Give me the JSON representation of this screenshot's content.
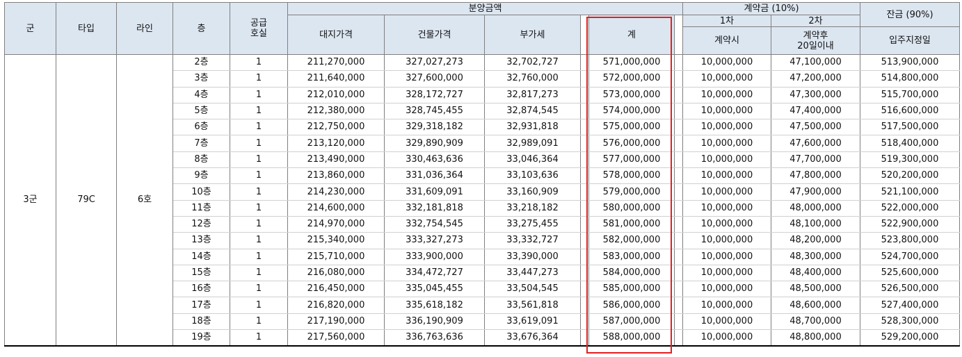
{
  "headers": {
    "group": "군",
    "type": "타입",
    "line": "라인",
    "floor": "층",
    "supply_units_l1": "공급",
    "supply_units_l2": "호실",
    "sale_price": "분양금액",
    "land_price": "대지가격",
    "building_price": "건물가격",
    "vat": "부가세",
    "total": "계",
    "deposit": "계약금 (10%)",
    "first": "1차",
    "first_sub": "계약시",
    "second": "2차",
    "second_sub_l1": "계약후",
    "second_sub_l2": "20일이내",
    "balance": "잔금 (90%)",
    "balance_sub": "입주지정일"
  },
  "merged": {
    "group": "3군",
    "type": "79C",
    "line": "6호"
  },
  "rows": [
    {
      "floor": "2층",
      "units": "1",
      "land": "211,270,000",
      "building": "327,027,273",
      "vat": "32,702,727",
      "total": "571,000,000",
      "first": "10,000,000",
      "second": "47,100,000",
      "balance": "513,900,000"
    },
    {
      "floor": "3층",
      "units": "1",
      "land": "211,640,000",
      "building": "327,600,000",
      "vat": "32,760,000",
      "total": "572,000,000",
      "first": "10,000,000",
      "second": "47,200,000",
      "balance": "514,800,000"
    },
    {
      "floor": "4층",
      "units": "1",
      "land": "212,010,000",
      "building": "328,172,727",
      "vat": "32,817,273",
      "total": "573,000,000",
      "first": "10,000,000",
      "second": "47,300,000",
      "balance": "515,700,000"
    },
    {
      "floor": "5층",
      "units": "1",
      "land": "212,380,000",
      "building": "328,745,455",
      "vat": "32,874,545",
      "total": "574,000,000",
      "first": "10,000,000",
      "second": "47,400,000",
      "balance": "516,600,000"
    },
    {
      "floor": "6층",
      "units": "1",
      "land": "212,750,000",
      "building": "329,318,182",
      "vat": "32,931,818",
      "total": "575,000,000",
      "first": "10,000,000",
      "second": "47,500,000",
      "balance": "517,500,000"
    },
    {
      "floor": "7층",
      "units": "1",
      "land": "213,120,000",
      "building": "329,890,909",
      "vat": "32,989,091",
      "total": "576,000,000",
      "first": "10,000,000",
      "second": "47,600,000",
      "balance": "518,400,000"
    },
    {
      "floor": "8층",
      "units": "1",
      "land": "213,490,000",
      "building": "330,463,636",
      "vat": "33,046,364",
      "total": "577,000,000",
      "first": "10,000,000",
      "second": "47,700,000",
      "balance": "519,300,000"
    },
    {
      "floor": "9층",
      "units": "1",
      "land": "213,860,000",
      "building": "331,036,364",
      "vat": "33,103,636",
      "total": "578,000,000",
      "first": "10,000,000",
      "second": "47,800,000",
      "balance": "520,200,000"
    },
    {
      "floor": "10층",
      "units": "1",
      "land": "214,230,000",
      "building": "331,609,091",
      "vat": "33,160,909",
      "total": "579,000,000",
      "first": "10,000,000",
      "second": "47,900,000",
      "balance": "521,100,000"
    },
    {
      "floor": "11층",
      "units": "1",
      "land": "214,600,000",
      "building": "332,181,818",
      "vat": "33,218,182",
      "total": "580,000,000",
      "first": "10,000,000",
      "second": "48,000,000",
      "balance": "522,000,000"
    },
    {
      "floor": "12층",
      "units": "1",
      "land": "214,970,000",
      "building": "332,754,545",
      "vat": "33,275,455",
      "total": "581,000,000",
      "first": "10,000,000",
      "second": "48,100,000",
      "balance": "522,900,000"
    },
    {
      "floor": "13층",
      "units": "1",
      "land": "215,340,000",
      "building": "333,327,273",
      "vat": "33,332,727",
      "total": "582,000,000",
      "first": "10,000,000",
      "second": "48,200,000",
      "balance": "523,800,000"
    },
    {
      "floor": "14층",
      "units": "1",
      "land": "215,710,000",
      "building": "333,900,000",
      "vat": "33,390,000",
      "total": "583,000,000",
      "first": "10,000,000",
      "second": "48,300,000",
      "balance": "524,700,000"
    },
    {
      "floor": "15층",
      "units": "1",
      "land": "216,080,000",
      "building": "334,472,727",
      "vat": "33,447,273",
      "total": "584,000,000",
      "first": "10,000,000",
      "second": "48,400,000",
      "balance": "525,600,000"
    },
    {
      "floor": "16층",
      "units": "1",
      "land": "216,450,000",
      "building": "335,045,455",
      "vat": "33,504,545",
      "total": "585,000,000",
      "first": "10,000,000",
      "second": "48,500,000",
      "balance": "526,500,000"
    },
    {
      "floor": "17층",
      "units": "1",
      "land": "216,820,000",
      "building": "335,618,182",
      "vat": "33,561,818",
      "total": "586,000,000",
      "first": "10,000,000",
      "second": "48,600,000",
      "balance": "527,400,000"
    },
    {
      "floor": "18층",
      "units": "1",
      "land": "217,190,000",
      "building": "336,190,909",
      "vat": "33,619,091",
      "total": "587,000,000",
      "first": "10,000,000",
      "second": "48,700,000",
      "balance": "528,300,000"
    },
    {
      "floor": "19층",
      "units": "1",
      "land": "217,560,000",
      "building": "336,763,636",
      "vat": "33,676,364",
      "total": "588,000,000",
      "first": "10,000,000",
      "second": "48,800,000",
      "balance": "529,200,000"
    }
  ],
  "highlight_color": "#e0201e",
  "header_bg": "#dce6f1"
}
